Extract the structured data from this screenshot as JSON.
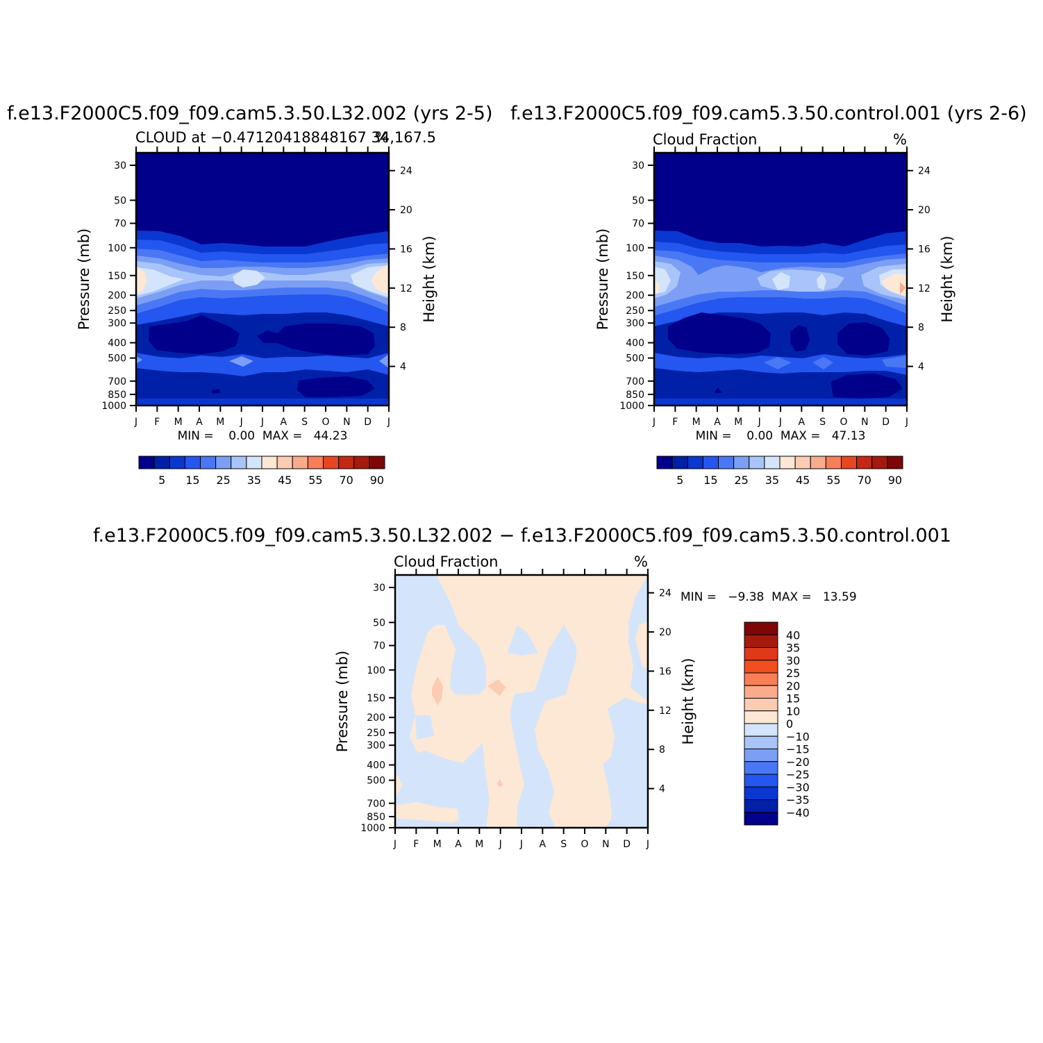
{
  "chart_data": [
    {
      "type": "heatmap",
      "title": "f.e13.F2000C5.f09_f09.cam5.3.50.L32.002 (yrs 2-5)",
      "subtitle_left": "CLOUD at −0.47120418848167 34,167.5",
      "subtitle_right": "%",
      "xlabel": "",
      "ylabel_left": "Pressure (mb)",
      "ylabel_right": "Height (km)",
      "x_ticks": [
        "J",
        "F",
        "M",
        "A",
        "M",
        "J",
        "J",
        "A",
        "S",
        "O",
        "N",
        "D",
        "J"
      ],
      "y_ticks_pressure": [
        30,
        50,
        70,
        100,
        150,
        200,
        250,
        300,
        400,
        500,
        700,
        850,
        1000
      ],
      "y_ticks_height": [
        24,
        20,
        16,
        12,
        8,
        4
      ],
      "ylim_pressure": [
        1000,
        25
      ],
      "stats": "MIN =    0.00  MAX =   44.23",
      "min": 0.0,
      "max": 44.23,
      "colorbar": {
        "labels": [
          "5",
          "15",
          "25",
          "35",
          "45",
          "55",
          "70",
          "90"
        ],
        "colors": [
          "#00008b",
          "#0020a8",
          "#0a37d0",
          "#2456f0",
          "#4a78f5",
          "#7c9ff5",
          "#a9c4f9",
          "#d4e5fb",
          "#fde8d5",
          "#fcccb2",
          "#faab8c",
          "#f77e57",
          "#e8461f",
          "#c42812",
          "#a51a0c",
          "#7f0606"
        ],
        "orientation": "horizontal"
      }
    },
    {
      "type": "heatmap",
      "title": "f.e13.F2000C5.f09_f09.cam5.3.50.control.001 (yrs 2-6)",
      "subtitle_left": "Cloud Fraction",
      "subtitle_right": "%",
      "xlabel": "",
      "ylabel_left": "Pressure (mb)",
      "ylabel_right": "Height (km)",
      "x_ticks": [
        "J",
        "F",
        "M",
        "A",
        "M",
        "J",
        "J",
        "A",
        "S",
        "O",
        "N",
        "D",
        "J"
      ],
      "y_ticks_pressure": [
        30,
        50,
        70,
        100,
        150,
        200,
        250,
        300,
        400,
        500,
        700,
        850,
        1000
      ],
      "y_ticks_height": [
        24,
        20,
        16,
        12,
        8,
        4
      ],
      "ylim_pressure": [
        1000,
        25
      ],
      "stats": "MIN =    0.00  MAX =   47.13",
      "min": 0.0,
      "max": 47.13,
      "colorbar": {
        "labels": [
          "5",
          "15",
          "25",
          "35",
          "45",
          "55",
          "70",
          "90"
        ],
        "colors": [
          "#00008b",
          "#0020a8",
          "#0a37d0",
          "#2456f0",
          "#4a78f5",
          "#7c9ff5",
          "#a9c4f9",
          "#d4e5fb",
          "#fde8d5",
          "#fcccb2",
          "#faab8c",
          "#f77e57",
          "#e8461f",
          "#c42812",
          "#a51a0c",
          "#7f0606"
        ],
        "orientation": "horizontal"
      }
    },
    {
      "type": "heatmap",
      "title": "f.e13.F2000C5.f09_f09.cam5.3.50.L32.002 − f.e13.F2000C5.f09_f09.cam5.3.50.control.001",
      "subtitle_left": "Cloud Fraction",
      "subtitle_right": "%",
      "xlabel": "",
      "ylabel_left": "Pressure (mb)",
      "ylabel_right": "Height (km)",
      "x_ticks": [
        "J",
        "F",
        "M",
        "A",
        "M",
        "J",
        "J",
        "A",
        "S",
        "O",
        "N",
        "D",
        "J"
      ],
      "y_ticks_pressure": [
        30,
        50,
        70,
        100,
        150,
        200,
        250,
        300,
        400,
        500,
        700,
        850,
        1000
      ],
      "y_ticks_height": [
        24,
        20,
        16,
        12,
        8,
        4
      ],
      "ylim_pressure": [
        1000,
        25
      ],
      "stats": "MIN =   −9.38  MAX =   13.59",
      "min": -9.38,
      "max": 13.59,
      "colorbar": {
        "labels": [
          "40",
          "35",
          "30",
          "25",
          "20",
          "15",
          "10",
          "0",
          "−10",
          "−15",
          "−20",
          "−25",
          "−30",
          "−35",
          "−40"
        ],
        "colors": [
          "#7f0606",
          "#a51a0c",
          "#e0391a",
          "#f24f20",
          "#f77e57",
          "#faab8c",
          "#fcccb2",
          "#fde8d5",
          "#d4e5fb",
          "#a9c4f9",
          "#7c9ff5",
          "#4a78f5",
          "#2456f0",
          "#0a37d0",
          "#0020a8",
          "#00008b"
        ],
        "orientation": "vertical"
      }
    }
  ]
}
